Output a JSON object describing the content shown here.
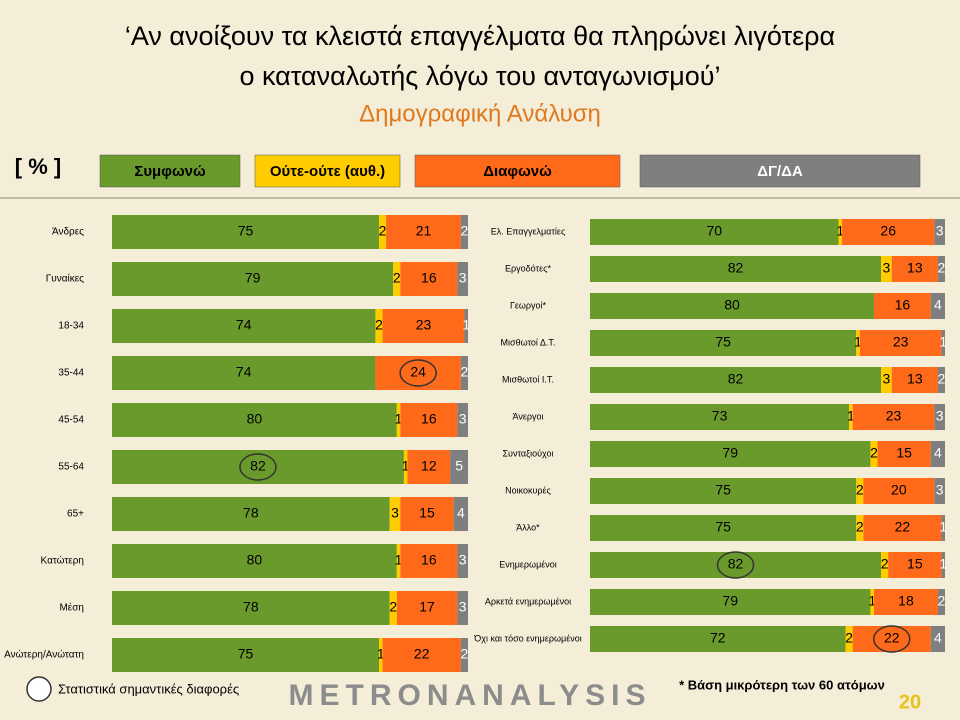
{
  "header": {
    "title_lines": [
      "‘Αν ανοίξουν τα κλειστά επαγγέλματα θα πληρώνει λιγότερα",
      "ο καταναλωτής λόγω του ανταγωνισμού’"
    ],
    "subtitle": "Δημογραφική Ανάλυση",
    "unit_label": "[ % ]"
  },
  "chart_data": [
    {
      "type": "stacked-bar",
      "xlim": [
        0,
        100
      ],
      "categories": [
        "Άνδρες",
        "Γυναίκες",
        "18-34",
        "35-44",
        "45-54",
        "55-64",
        "65+",
        "Κατώτερη",
        "Μέση",
        "Ανώτερη/Ανώτατη"
      ],
      "series": [
        {
          "name": "Συμφωνώ",
          "color": "#6b9a2c",
          "values": [
            75,
            79,
            74,
            74,
            80,
            82,
            78,
            80,
            78,
            75
          ]
        },
        {
          "name": "Ούτε-ούτε (αυθ.)",
          "color": "#ffcc00",
          "values": [
            2,
            2,
            2,
            null,
            1,
            1,
            3,
            1,
            2,
            1
          ]
        },
        {
          "name": "Διαφωνώ",
          "color": "#ff6a1a",
          "values": [
            21,
            16,
            23,
            24,
            16,
            12,
            15,
            16,
            17,
            22
          ]
        },
        {
          "name": "ΔΓ/ΔΑ",
          "color": "#7f7f7f",
          "values": [
            2,
            3,
            1,
            2,
            3,
            5,
            4,
            3,
            3,
            2
          ]
        }
      ],
      "highlights": [
        {
          "series": 2,
          "index": 3
        },
        {
          "series": 0,
          "index": 5
        }
      ]
    },
    {
      "type": "stacked-bar",
      "xlim": [
        0,
        100
      ],
      "categories": [
        "Ελ. Επαγγελματίες",
        "Εργοδότες*",
        "Γεωργοί*",
        "Μισθωτοί Δ.Τ.",
        "Μισθωτοί Ι.Τ.",
        "Άνεργοι",
        "Συνταξιούχοι",
        "Νοικοκυρές",
        "Άλλο*",
        "Ενημερωμένοι",
        "Αρκετά ενημερωμένοι",
        "Όχι και τόσο ενημερωμένοι"
      ],
      "series": [
        {
          "name": "Συμφωνώ",
          "color": "#6b9a2c",
          "values": [
            70,
            82,
            80,
            75,
            82,
            73,
            79,
            75,
            75,
            82,
            79,
            72
          ]
        },
        {
          "name": "Ούτε-ούτε (αυθ.)",
          "color": "#ffcc00",
          "values": [
            1,
            3,
            null,
            1,
            3,
            1,
            2,
            2,
            2,
            2,
            1,
            2
          ]
        },
        {
          "name": "Διαφωνώ",
          "color": "#ff6a1a",
          "values": [
            26,
            13,
            16,
            23,
            13,
            23,
            15,
            20,
            22,
            15,
            18,
            22
          ]
        },
        {
          "name": "ΔΓ/ΔΑ",
          "color": "#7f7f7f",
          "values": [
            3,
            2,
            4,
            1,
            2,
            3,
            4,
            3,
            1,
            1,
            2,
            4
          ]
        }
      ],
      "highlights": [
        {
          "series": 0,
          "index": 9
        },
        {
          "series": 2,
          "index": 11
        }
      ]
    }
  ],
  "footer": {
    "legend_note": "Στατιστικά σημαντικές διαφορές",
    "logo": "METRONANALYSIS",
    "note": "* Βάση μικρότερη των 60 ατόμων",
    "page": "20"
  }
}
